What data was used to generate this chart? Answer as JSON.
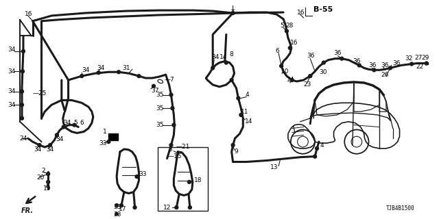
{
  "background": "#ffffff",
  "line_color": "#1a1a1a",
  "text_color": "#000000",
  "diagram_id": "TJB4B1500",
  "diagram_code": "B-55",
  "figsize": [
    6.4,
    3.2
  ],
  "dpi": 100,
  "labels": {
    "b55": "B-55",
    "diag_id": "TJB4B1500"
  }
}
